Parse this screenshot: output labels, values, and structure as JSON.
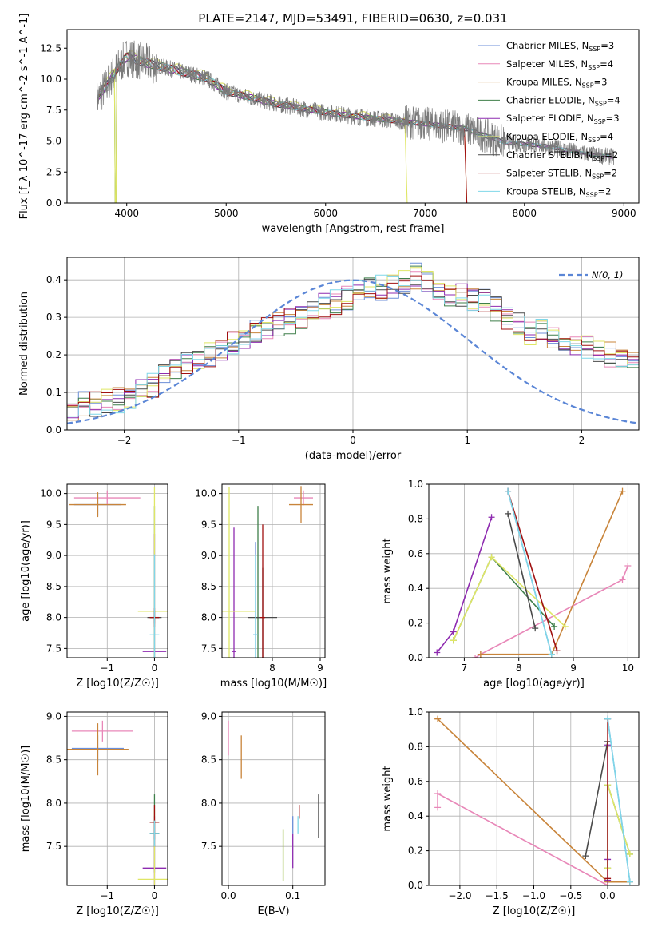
{
  "figure": {
    "title": "PLATE=2147, MJD=53491, FIBERID=0630, z=0.031"
  },
  "series_names": [
    "Chabrier MILES, N_SSP=3",
    "Salpeter MILES, N_SSP=4",
    "Kroupa MILES, N_SSP=3",
    "Chabrier ELODIE, N_SSP=4",
    "Salpeter ELODIE, N_SSP=3",
    "Kroupa ELODIE, N_SSP=4",
    "Chabrier STELIB, N_SSP=2",
    "Salpeter STELIB, N_SSP=2",
    "Kroupa STELIB, N_SSP=2"
  ],
  "series_colors": [
    "#6c8fd8",
    "#e887b8",
    "#c8843a",
    "#3f7f4a",
    "#8e2bb0",
    "#dfe665",
    "#4a4a4a",
    "#a01010",
    "#7fd7e8"
  ],
  "chart_data": [
    {
      "id": "spectrum",
      "type": "line",
      "title": "PLATE=2147, MJD=53491, FIBERID=0630, z=0.031",
      "xlabel": "wavelength [Angstrom, rest frame]",
      "ylabel": "Flux [f_λ 10^-17 erg cm^-2 s^-1 A^-1]",
      "xlim": [
        3400,
        9150
      ],
      "ylim": [
        0,
        14
      ],
      "xticks": [
        4000,
        5000,
        6000,
        7000,
        8000,
        9000
      ],
      "yticks": [
        0.0,
        2.5,
        5.0,
        7.5,
        10.0,
        12.5
      ],
      "grid": false,
      "legend": "top-right",
      "continuum": {
        "x": [
          3700,
          3900,
          4000,
          4200,
          4500,
          4800,
          5000,
          5500,
          6000,
          6500,
          7000,
          7400,
          7800,
          8200,
          8600,
          8900
        ],
        "y": [
          8.3,
          10.8,
          11.8,
          11.3,
          10.7,
          10.1,
          9.0,
          8.0,
          7.3,
          6.8,
          6.4,
          6.0,
          4.9,
          4.6,
          4.0,
          3.7
        ]
      },
      "model_ranges": [
        [
          3700,
          8900
        ],
        [
          3700,
          8900
        ],
        [
          3700,
          7400
        ],
        [
          3700,
          8900
        ],
        [
          3700,
          8900
        ],
        [
          3700,
          6800
        ],
        [
          3700,
          8900
        ],
        [
          3700,
          7400
        ],
        [
          3700,
          8900
        ]
      ],
      "data_range": [
        3700,
        8900
      ]
    },
    {
      "id": "residuals",
      "type": "histogram",
      "xlabel": "(data-model)/error",
      "ylabel": "Normed distribution",
      "xlim": [
        -2.5,
        2.5
      ],
      "ylim": [
        0,
        0.46
      ],
      "xticks": [
        -2,
        -1,
        0,
        1,
        2
      ],
      "yticks": [
        0.0,
        0.1,
        0.2,
        0.3,
        0.4
      ],
      "grid": true,
      "legend": "top-right",
      "gaussian_label": "N(0, 1)",
      "bin_width": 0.1,
      "bin_start": -2.5,
      "base_heights": [
        0.06,
        0.07,
        0.07,
        0.08,
        0.08,
        0.09,
        0.1,
        0.12,
        0.15,
        0.17,
        0.18,
        0.18,
        0.2,
        0.22,
        0.23,
        0.24,
        0.26,
        0.27,
        0.28,
        0.29,
        0.3,
        0.31,
        0.33,
        0.34,
        0.35,
        0.37,
        0.37,
        0.38,
        0.38,
        0.39,
        0.41,
        0.39,
        0.37,
        0.36,
        0.36,
        0.35,
        0.34,
        0.32,
        0.3,
        0.28,
        0.26,
        0.26,
        0.25,
        0.24,
        0.23,
        0.22,
        0.21,
        0.2,
        0.19,
        0.18,
        0.17,
        0.17,
        0.16,
        0.15,
        0.14,
        0.13,
        0.12,
        0.11,
        0.1,
        0.09,
        0.08,
        0.07,
        0.07,
        0.06,
        0.06,
        0.05,
        0.05,
        0.04,
        0.04,
        0.04,
        0.04,
        0.03,
        0.03,
        0.03,
        0.03,
        0.03,
        0.03,
        0.03,
        0.03,
        0.03
      ]
    },
    {
      "id": "age-vs-Z",
      "type": "errorbar",
      "xlabel": "Z [log10(Z/Z☉)]",
      "ylabel": "age [log10(age/yr)]",
      "xlim": [
        -1.85,
        0.28
      ],
      "ylim": [
        7.35,
        10.15
      ],
      "xticks": [
        -1,
        0
      ],
      "yticks": [
        7.5,
        8.0,
        8.5,
        9.0,
        9.5,
        10.0
      ],
      "grid": true,
      "points": [
        {
          "s": 0,
          "x": -1.2,
          "y": 9.82,
          "xerr": 0.5,
          "yerr": 0.18
        },
        {
          "s": 1,
          "x": -1.0,
          "y": 9.93,
          "xerr": 0.7,
          "yerr": 0.12
        },
        {
          "s": 2,
          "x": -1.2,
          "y": 9.82,
          "xerr": 0.6,
          "yerr": 0.2
        },
        {
          "s": 3,
          "x": 0.0,
          "y": 8.0,
          "xerr": 0.1,
          "yerr": 1.8
        },
        {
          "s": 4,
          "x": 0.0,
          "y": 7.45,
          "xerr": 0.25,
          "yerr": 1.9
        },
        {
          "s": 5,
          "x": 0.0,
          "y": 8.1,
          "xerr": 0.35,
          "yerr": 2.0
        },
        {
          "s": 6,
          "x": 0.0,
          "y": 8.0,
          "xerr": 0.15,
          "yerr": 0.1
        },
        {
          "s": 7,
          "x": 0.0,
          "y": 8.0,
          "xerr": 0.1,
          "yerr": 0.15
        },
        {
          "s": 8,
          "x": 0.0,
          "y": 7.72,
          "xerr": 0.1,
          "yerr": 1.3
        }
      ]
    },
    {
      "id": "age-vs-mass",
      "type": "errorbar",
      "xlabel": "mass [log10(M/M☉)]",
      "ylabel": "",
      "xlim": [
        6.95,
        9.1
      ],
      "ylim": [
        7.35,
        10.15
      ],
      "xticks": [
        8,
        9
      ],
      "yticks": [
        7.5,
        8.0,
        8.5,
        9.0,
        9.5,
        10.0
      ],
      "grid": true,
      "points": [
        {
          "s": 0,
          "x": 7.65,
          "y": 7.72,
          "xerr": 0.05,
          "yerr": 1.5
        },
        {
          "s": 1,
          "x": 8.65,
          "y": 9.93,
          "xerr": 0.2,
          "yerr": 0.12
        },
        {
          "s": 2,
          "x": 8.6,
          "y": 9.82,
          "xerr": 0.25,
          "yerr": 0.3
        },
        {
          "s": 3,
          "x": 7.7,
          "y": 8.0,
          "xerr": 0.05,
          "yerr": 1.8
        },
        {
          "s": 4,
          "x": 7.2,
          "y": 7.45,
          "xerr": 0.05,
          "yerr": 2.0
        },
        {
          "s": 5,
          "x": 7.1,
          "y": 8.1,
          "xerr": 0.55,
          "yerr": 2.0
        },
        {
          "s": 6,
          "x": 7.8,
          "y": 8.0,
          "xerr": 0.3,
          "yerr": 0.8
        },
        {
          "s": 7,
          "x": 7.8,
          "y": 8.0,
          "xerr": 0.05,
          "yerr": 1.5
        },
        {
          "s": 8,
          "x": 7.65,
          "y": 7.72,
          "xerr": 0.05,
          "yerr": 1.3
        }
      ]
    },
    {
      "id": "weight-vs-age",
      "type": "line",
      "xlabel": "age [log10(age/yr)]",
      "ylabel": "mass weight",
      "xlim": [
        6.35,
        10.2
      ],
      "ylim": [
        0,
        1
      ],
      "xticks": [
        7,
        8,
        9,
        10
      ],
      "yticks": [
        0.0,
        0.2,
        0.4,
        0.6,
        0.8,
        1.0
      ],
      "grid": true,
      "series": [
        {
          "s": 0,
          "x": [
            7.8,
            8.6
          ],
          "y": [
            0.96,
            0.02
          ]
        },
        {
          "s": 1,
          "x": [
            7.2,
            7.3,
            9.9,
            10.0
          ],
          "y": [
            0.0,
            0.02,
            0.45,
            0.53
          ]
        },
        {
          "s": 2,
          "x": [
            7.3,
            8.6,
            9.9
          ],
          "y": [
            0.02,
            0.02,
            0.96
          ]
        },
        {
          "s": 3,
          "x": [
            6.8,
            7.5,
            8.65
          ],
          "y": [
            0.1,
            0.58,
            0.18
          ]
        },
        {
          "s": 4,
          "x": [
            6.5,
            6.8,
            7.5
          ],
          "y": [
            0.03,
            0.15,
            0.81
          ]
        },
        {
          "s": 5,
          "x": [
            6.8,
            7.5,
            8.85
          ],
          "y": [
            0.1,
            0.58,
            0.18
          ]
        },
        {
          "s": 6,
          "x": [
            7.8,
            8.3
          ],
          "y": [
            0.83,
            0.17
          ]
        },
        {
          "s": 7,
          "x": [
            7.8,
            8.7
          ],
          "y": [
            0.96,
            0.04
          ]
        },
        {
          "s": 8,
          "x": [
            7.8,
            8.6
          ],
          "y": [
            0.96,
            0.02
          ]
        }
      ]
    },
    {
      "id": "mass-vs-Z",
      "type": "errorbar",
      "xlabel": "Z [log10(Z/Z☉)]",
      "ylabel": "mass [log10(M/M☉)]",
      "xlim": [
        -1.85,
        0.28
      ],
      "ylim": [
        7.05,
        9.05
      ],
      "xticks": [
        -1,
        0
      ],
      "yticks": [
        7.5,
        8.0,
        8.5,
        9.0
      ],
      "grid": true,
      "points": [
        {
          "s": 0,
          "x": -1.2,
          "y": 8.63,
          "xerr": 0.55,
          "yerr": 0.15
        },
        {
          "s": 1,
          "x": -1.1,
          "y": 8.83,
          "xerr": 0.65,
          "yerr": 0.12
        },
        {
          "s": 2,
          "x": -1.2,
          "y": 8.62,
          "xerr": 0.65,
          "yerr": 0.3
        },
        {
          "s": 3,
          "x": 0.0,
          "y": 7.65,
          "xerr": 0.1,
          "yerr": 0.45
        },
        {
          "s": 4,
          "x": 0.0,
          "y": 7.25,
          "xerr": 0.25,
          "yerr": 0.6
        },
        {
          "s": 5,
          "x": 0.0,
          "y": 7.12,
          "xerr": 0.35,
          "yerr": 0.8
        },
        {
          "s": 6,
          "x": 0.0,
          "y": 7.65,
          "xerr": 0.1,
          "yerr": 0.15
        },
        {
          "s": 7,
          "x": 0.0,
          "y": 7.78,
          "xerr": 0.1,
          "yerr": 0.2
        },
        {
          "s": 8,
          "x": 0.0,
          "y": 7.65,
          "xerr": 0.1,
          "yerr": 0.15
        }
      ]
    },
    {
      "id": "mass-vs-ebv",
      "type": "errorbar",
      "xlabel": "E(B-V)",
      "ylabel": "",
      "xlim": [
        -0.01,
        0.15
      ],
      "ylim": [
        7.05,
        9.05
      ],
      "xticks": [
        0.0,
        0.1
      ],
      "yticks": [
        7.5,
        8.0,
        8.5,
        9.0
      ],
      "grid": true,
      "points": [
        {
          "s": 0,
          "x": 0.1,
          "y": 7.75,
          "xerr": 0,
          "yerr": 0.1
        },
        {
          "s": 1,
          "x": 0.0,
          "y": 8.75,
          "xerr": 0,
          "yerr": 0.2
        },
        {
          "s": 2,
          "x": 0.02,
          "y": 8.53,
          "xerr": 0,
          "yerr": 0.25
        },
        {
          "s": 3,
          "x": 0.085,
          "y": 7.4,
          "xerr": 0,
          "yerr": 0.3
        },
        {
          "s": 4,
          "x": 0.1,
          "y": 7.45,
          "xerr": 0,
          "yerr": 0.2
        },
        {
          "s": 5,
          "x": 0.085,
          "y": 7.4,
          "xerr": 0,
          "yerr": 0.3
        },
        {
          "s": 6,
          "x": 0.14,
          "y": 7.85,
          "xerr": 0,
          "yerr": 0.25
        },
        {
          "s": 7,
          "x": 0.11,
          "y": 7.9,
          "xerr": 0,
          "yerr": 0.08
        },
        {
          "s": 8,
          "x": 0.108,
          "y": 7.75,
          "xerr": 0,
          "yerr": 0.1
        }
      ]
    },
    {
      "id": "weight-vs-Z",
      "type": "line",
      "xlabel": "Z [log10(Z/Z☉)]",
      "ylabel": "mass weight",
      "xlim": [
        -2.42,
        0.42
      ],
      "ylim": [
        0,
        1
      ],
      "xticks": [
        -2.0,
        -1.5,
        -1.0,
        -0.5,
        0.0
      ],
      "yticks": [
        0.0,
        0.2,
        0.4,
        0.6,
        0.8,
        1.0
      ],
      "grid": true,
      "series": [
        {
          "s": 0,
          "x": [
            0.0,
            0.3
          ],
          "y": [
            0.96,
            0.02
          ]
        },
        {
          "s": 1,
          "x": [
            -2.3,
            -2.3,
            0.0,
            0.0
          ],
          "y": [
            0.45,
            0.53,
            0.0,
            0.02
          ]
        },
        {
          "s": 2,
          "x": [
            -2.3,
            0.0,
            0.3
          ],
          "y": [
            0.96,
            0.02,
            0.02
          ]
        },
        {
          "s": 3,
          "x": [
            0.0,
            0.0,
            0.3
          ],
          "y": [
            0.1,
            0.58,
            0.18
          ]
        },
        {
          "s": 4,
          "x": [
            0.0,
            0.0,
            0.0
          ],
          "y": [
            0.03,
            0.15,
            0.81
          ]
        },
        {
          "s": 5,
          "x": [
            0.0,
            0.0,
            0.3
          ],
          "y": [
            0.1,
            0.58,
            0.18
          ]
        },
        {
          "s": 6,
          "x": [
            -0.3,
            0.0
          ],
          "y": [
            0.17,
            0.83
          ]
        },
        {
          "s": 7,
          "x": [
            0.0,
            0.0
          ],
          "y": [
            0.96,
            0.04
          ]
        },
        {
          "s": 8,
          "x": [
            0.0,
            0.3
          ],
          "y": [
            0.96,
            0.02
          ]
        }
      ]
    }
  ]
}
